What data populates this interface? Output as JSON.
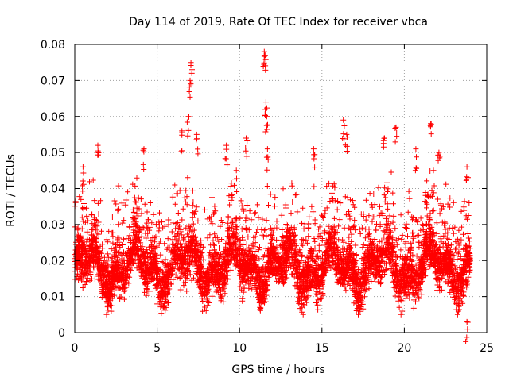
{
  "chart_data": {
    "type": "scatter",
    "title": "Day 114 of 2019, Rate Of TEC Index for receiver vbca",
    "xlabel": "GPS time / hours",
    "ylabel": "ROTI / TECUs",
    "xlim": [
      0,
      25
    ],
    "ylim": [
      0,
      0.08
    ],
    "xticks": [
      0,
      5,
      10,
      15,
      20,
      25
    ],
    "yticks": [
      0,
      0.01,
      0.02,
      0.03,
      0.04,
      0.05,
      0.06,
      0.07,
      0.08
    ],
    "xtick_labels": [
      "0",
      "5",
      "10",
      "15",
      "20",
      "25"
    ],
    "ytick_labels": [
      "0",
      "0.01",
      "0.02",
      "0.03",
      "0.04",
      "0.05",
      "0.06",
      "0.07",
      "0.08"
    ],
    "grid": true,
    "marker": "+",
    "color": "#ff0000",
    "series": [
      {
        "name": "ROTI",
        "x_range": [
          0,
          24
        ],
        "typical_band": [
          0.005,
          0.045
        ],
        "points_approx": [
          [
            0.5,
            0.046
          ],
          [
            1.4,
            0.052
          ],
          [
            4.2,
            0.051
          ],
          [
            6.5,
            0.056
          ],
          [
            6.9,
            0.06
          ],
          [
            7.0,
            0.07
          ],
          [
            7.05,
            0.075
          ],
          [
            7.4,
            0.055
          ],
          [
            9.2,
            0.052
          ],
          [
            10.4,
            0.054
          ],
          [
            11.5,
            0.078
          ],
          [
            11.55,
            0.077
          ],
          [
            11.6,
            0.064
          ],
          [
            11.65,
            0.06
          ],
          [
            11.7,
            0.051
          ],
          [
            14.5,
            0.051
          ],
          [
            16.3,
            0.059
          ],
          [
            16.5,
            0.055
          ],
          [
            18.8,
            0.054
          ],
          [
            19.5,
            0.057
          ],
          [
            20.7,
            0.051
          ],
          [
            21.6,
            0.058
          ],
          [
            22.1,
            0.05
          ],
          [
            23.8,
            0.046
          ],
          [
            23.8,
            0.003
          ]
        ]
      }
    ]
  }
}
